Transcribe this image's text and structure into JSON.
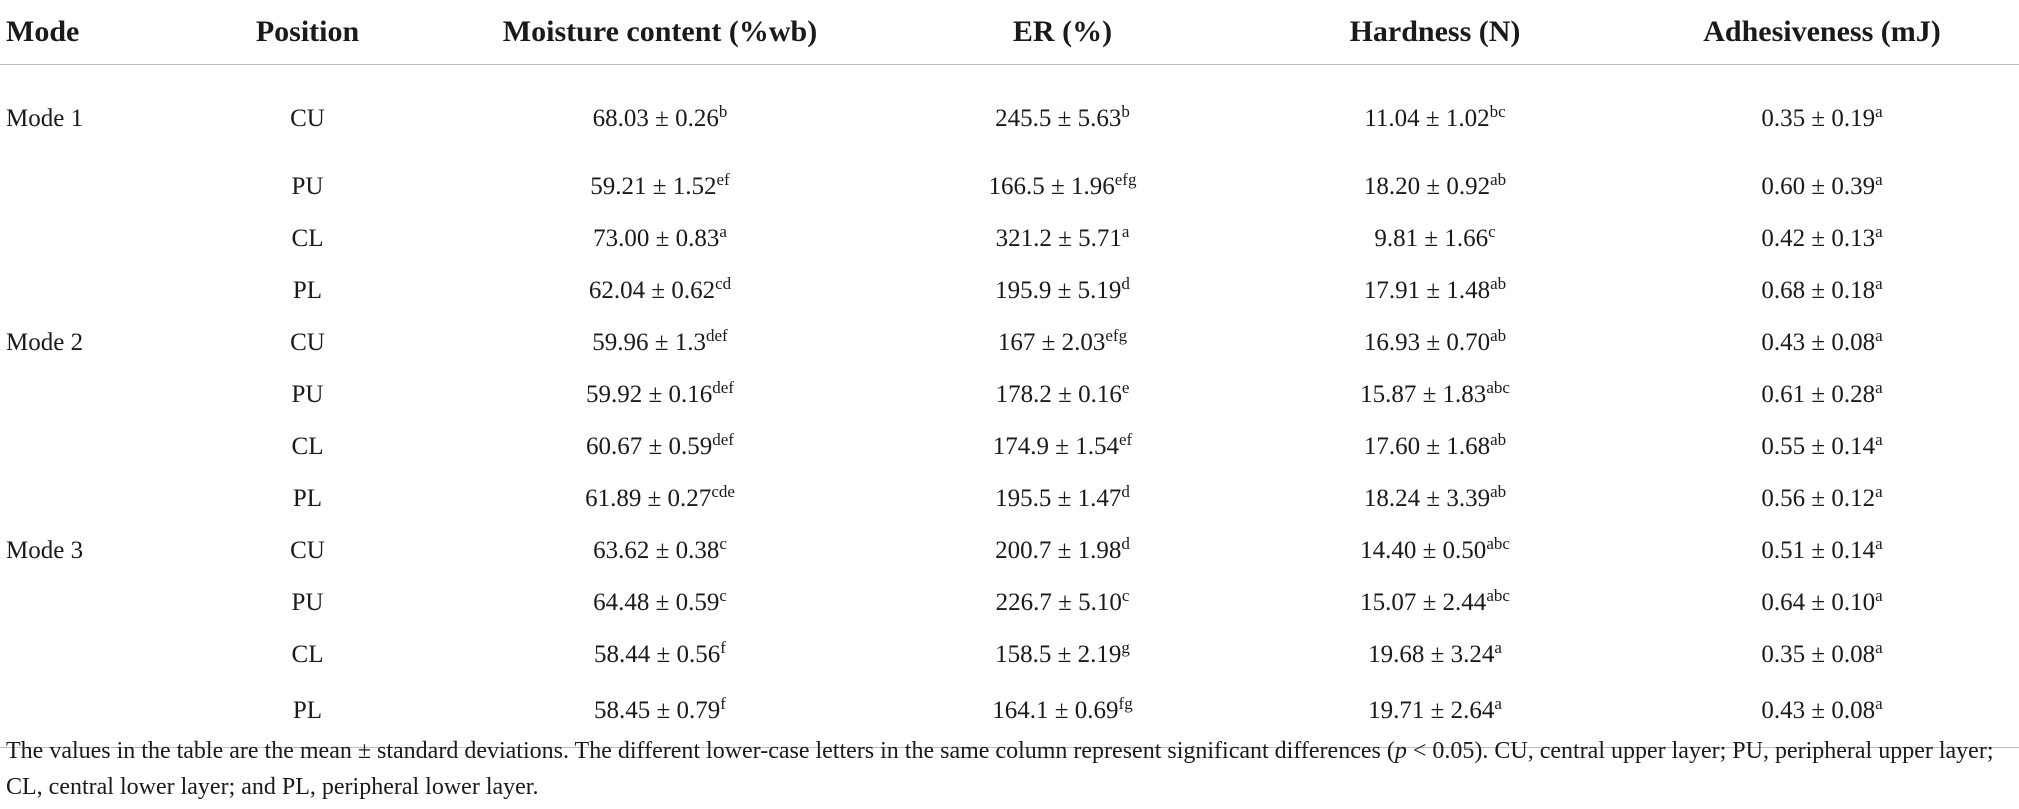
{
  "table": {
    "headers": [
      "Mode",
      "Position",
      "Moisture content (%wb)",
      "ER (%)",
      "Hardness (N)",
      "Adhesiveness (mJ)"
    ],
    "rows": [
      {
        "mode": "Mode 1",
        "position": "CU",
        "moisture": "68.03 ± 0.26",
        "moisture_sup": "b",
        "er": "245.5 ± 5.63",
        "er_sup": "b",
        "hardness": "11.04 ± 1.02",
        "hardness_sup": "bc",
        "adhesiveness": "0.35 ± 0.19",
        "adhesiveness_sup": "a"
      },
      {
        "mode": "",
        "position": "PU",
        "moisture": "59.21 ± 1.52",
        "moisture_sup": "ef",
        "er": "166.5 ± 1.96",
        "er_sup": "efg",
        "hardness": "18.20 ± 0.92",
        "hardness_sup": "ab",
        "adhesiveness": "0.60 ± 0.39",
        "adhesiveness_sup": "a"
      },
      {
        "mode": "",
        "position": "CL",
        "moisture": "73.00 ± 0.83",
        "moisture_sup": "a",
        "er": "321.2 ± 5.71",
        "er_sup": "a",
        "hardness": "9.81 ± 1.66",
        "hardness_sup": "c",
        "adhesiveness": "0.42 ± 0.13",
        "adhesiveness_sup": "a"
      },
      {
        "mode": "",
        "position": "PL",
        "moisture": "62.04 ± 0.62",
        "moisture_sup": "cd",
        "er": "195.9 ± 5.19",
        "er_sup": "d",
        "hardness": "17.91 ± 1.48",
        "hardness_sup": "ab",
        "adhesiveness": "0.68 ± 0.18",
        "adhesiveness_sup": "a"
      },
      {
        "mode": "Mode 2",
        "position": "CU",
        "moisture": "59.96 ± 1.3",
        "moisture_sup": "def",
        "er": "167 ± 2.03",
        "er_sup": "efg",
        "hardness": "16.93 ± 0.70",
        "hardness_sup": "ab",
        "adhesiveness": "0.43 ± 0.08",
        "adhesiveness_sup": "a"
      },
      {
        "mode": "",
        "position": "PU",
        "moisture": "59.92 ± 0.16",
        "moisture_sup": "def",
        "er": "178.2 ± 0.16",
        "er_sup": "e",
        "hardness": "15.87 ± 1.83",
        "hardness_sup": "abc",
        "adhesiveness": "0.61 ± 0.28",
        "adhesiveness_sup": "a"
      },
      {
        "mode": "",
        "position": "CL",
        "moisture": "60.67 ± 0.59",
        "moisture_sup": "def",
        "er": "174.9 ± 1.54",
        "er_sup": "ef",
        "hardness": "17.60 ± 1.68",
        "hardness_sup": "ab",
        "adhesiveness": "0.55 ± 0.14",
        "adhesiveness_sup": "a"
      },
      {
        "mode": "",
        "position": "PL",
        "moisture": "61.89 ± 0.27",
        "moisture_sup": "cde",
        "er": "195.5 ± 1.47",
        "er_sup": "d",
        "hardness": "18.24 ± 3.39",
        "hardness_sup": "ab",
        "adhesiveness": "0.56 ± 0.12",
        "adhesiveness_sup": "a"
      },
      {
        "mode": "Mode 3",
        "position": "CU",
        "moisture": "63.62 ± 0.38",
        "moisture_sup": "c",
        "er": "200.7 ± 1.98",
        "er_sup": "d",
        "hardness": "14.40 ± 0.50",
        "hardness_sup": "abc",
        "adhesiveness": "0.51 ± 0.14",
        "adhesiveness_sup": "a"
      },
      {
        "mode": "",
        "position": "PU",
        "moisture": "64.48 ± 0.59",
        "moisture_sup": "c",
        "er": "226.7 ± 5.10",
        "er_sup": "c",
        "hardness": "15.07 ± 2.44",
        "hardness_sup": "abc",
        "adhesiveness": "0.64 ± 0.10",
        "adhesiveness_sup": "a"
      },
      {
        "mode": "",
        "position": "CL",
        "moisture": "58.44 ± 0.56",
        "moisture_sup": "f",
        "er": "158.5 ± 2.19",
        "er_sup": "g",
        "hardness": "19.68 ± 3.24",
        "hardness_sup": "a",
        "adhesiveness": "0.35 ± 0.08",
        "adhesiveness_sup": "a"
      },
      {
        "mode": "",
        "position": "PL",
        "moisture": "58.45 ± 0.79",
        "moisture_sup": "f",
        "er": "164.1 ± 0.69",
        "er_sup": "fg",
        "hardness": "19.71 ± 2.64",
        "hardness_sup": "a",
        "adhesiveness": "0.43 ± 0.08",
        "adhesiveness_sup": "a"
      }
    ]
  },
  "footnote": {
    "before_p": "The values in the table are the mean ± standard deviations. The different lower-case letters in the same column represent significant differences (",
    "p_symbol": "p",
    "after_p": " < 0.05). CU, central upper layer; PU, peripheral upper layer; CL, central lower layer; and PL, peripheral lower layer."
  }
}
